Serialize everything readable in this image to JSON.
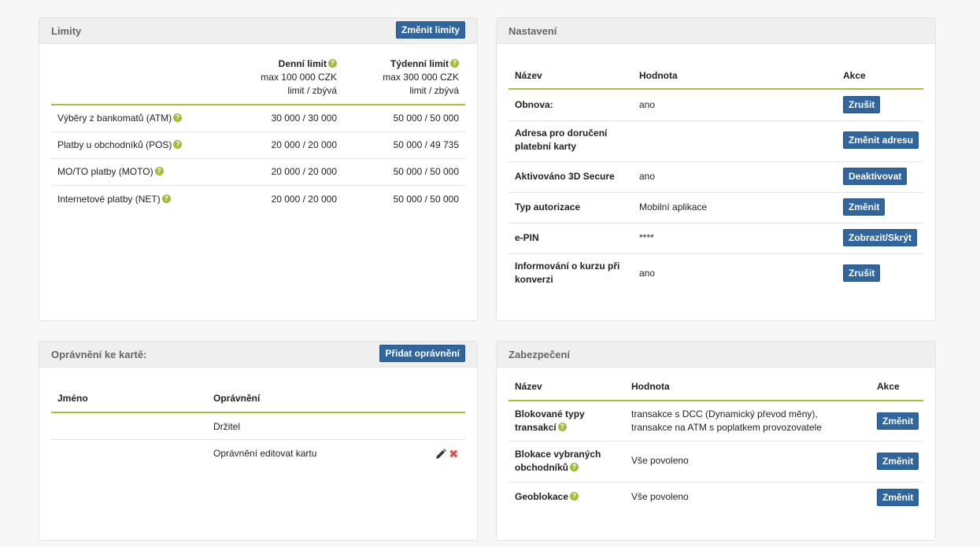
{
  "limits": {
    "title": "Limity",
    "button": "Změnit limity",
    "daily": {
      "label": "Denní limit",
      "max": "max 100 000 CZK",
      "sub": "limit / zbývá"
    },
    "weekly": {
      "label": "Týdenní limit",
      "max": "max 300 000 CZK",
      "sub": "limit / zbývá"
    },
    "rows": [
      {
        "name": "Výběry z bankomatů (ATM)",
        "daily": "30 000 / 30 000",
        "weekly": "50 000 / 50 000"
      },
      {
        "name": "Platby u obchodníků (POS)",
        "daily": "20 000 / 20 000",
        "weekly": "50 000 / 49 735"
      },
      {
        "name": "MO/TO platby (MOTO)",
        "daily": "20 000 / 20 000",
        "weekly": "50 000 / 50 000"
      },
      {
        "name": "Internetové platby (NET)",
        "daily": "20 000 / 20 000",
        "weekly": "50 000 / 50 000"
      }
    ]
  },
  "settings": {
    "title": "Nastavení",
    "headers": {
      "name": "Název",
      "value": "Hodnota",
      "action": "Akce"
    },
    "rows": [
      {
        "name": "Obnova:",
        "value": "ano",
        "action": "Zrušit"
      },
      {
        "name1": "Adresa pro doručení",
        "name2": "platební karty",
        "value": "",
        "action": "Změnit adresu"
      },
      {
        "name": "Aktivováno 3D Secure",
        "value": "ano",
        "action": "Deaktivovat"
      },
      {
        "name": "Typ autorizace",
        "value": "Mobilní aplikace",
        "action": "Změnit"
      },
      {
        "name": "e-PIN",
        "value": "****",
        "action": "Zobrazit/Skrýt"
      },
      {
        "name1": "Informování o kurzu při",
        "name2": "konverzi",
        "value": "ano",
        "action": "Zrušit"
      }
    ]
  },
  "permissions": {
    "title": "Oprávnění ke kartě:",
    "button": "Přidat oprávnění",
    "headers": {
      "name": "Jméno",
      "permission": "Oprávnění"
    },
    "rows": [
      {
        "name": "",
        "permission": "Držitel"
      },
      {
        "name": "",
        "permission": "Oprávnění editovat kartu"
      }
    ]
  },
  "security": {
    "title": "Zabezpečení",
    "headers": {
      "name": "Název",
      "value": "Hodnota",
      "action": "Akce"
    },
    "rows": [
      {
        "name1": "Blokované typy",
        "name2": "transakcí",
        "value1": "transakce s DCC (Dynamický převod měny),",
        "value2": "transakce na ATM s poplatkem provozovatele",
        "action": "Změnit"
      },
      {
        "name1": "Blokace vybraných",
        "name2": "obchodníků",
        "value": "Vše povoleno",
        "action": "Změnit"
      },
      {
        "name": "Geoblokace",
        "value": "Vše povoleno",
        "action": "Změnit"
      }
    ]
  },
  "icons": {
    "help": "?",
    "delete": "✖"
  },
  "colors": {
    "button": "#31659e",
    "accent_line": "#a7bf3f",
    "help_icon": "#9bbd3a",
    "delete": "#d9534f"
  }
}
